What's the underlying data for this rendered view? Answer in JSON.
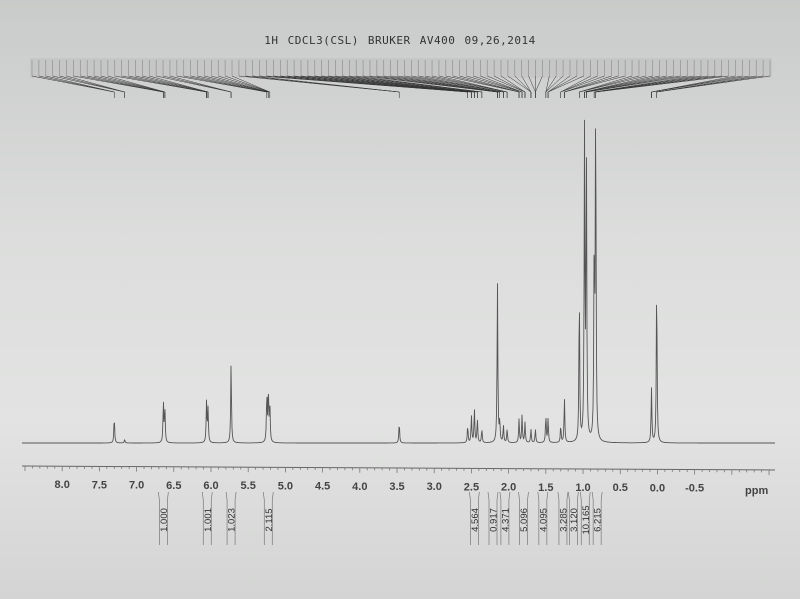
{
  "header": {
    "title": "1H CDCL3(CSL)  BRUKER AV400 09,26,2014"
  },
  "chart_data": {
    "type": "line",
    "title": "1H CDCL3(CSL)  BRUKER AV400 09,26,2014",
    "xlabel": "ppm",
    "ylabel": "",
    "x_reversed": true,
    "xlim": [
      8.54,
      -1.58
    ],
    "ylim": [
      0,
      1.0
    ],
    "grid": false,
    "ticks": [
      "8.0",
      "7.5",
      "7.0",
      "6.5",
      "6.0",
      "5.5",
      "5.0",
      "4.5",
      "4.0",
      "3.5",
      "3.0",
      "2.5",
      "2.0",
      "1.5",
      "1.0",
      "0.5",
      "0.0",
      "-0.5"
    ],
    "tick_values": [
      8.0,
      7.5,
      7.0,
      6.5,
      6.0,
      5.5,
      5.0,
      4.5,
      4.0,
      3.5,
      3.0,
      2.5,
      2.0,
      1.5,
      1.0,
      0.5,
      0.0,
      -0.5
    ],
    "line_color": "#555555",
    "peaks": [
      {
        "ppm": 7.3,
        "intensity": 0.076
      },
      {
        "ppm": 7.16,
        "intensity": 0.01
      },
      {
        "ppm": 6.64,
        "intensity": 0.12
      },
      {
        "ppm": 6.62,
        "intensity": 0.1
      },
      {
        "ppm": 6.06,
        "intensity": 0.12
      },
      {
        "ppm": 6.04,
        "intensity": 0.1
      },
      {
        "ppm": 5.73,
        "intensity": 0.235
      },
      {
        "ppm": 5.25,
        "intensity": 0.14
      },
      {
        "ppm": 5.23,
        "intensity": 0.15
      },
      {
        "ppm": 5.21,
        "intensity": 0.12
      },
      {
        "ppm": 3.47,
        "intensity": 0.06
      },
      {
        "ppm": 2.55,
        "intensity": 0.05
      },
      {
        "ppm": 2.5,
        "intensity": 0.08
      },
      {
        "ppm": 2.46,
        "intensity": 0.1
      },
      {
        "ppm": 2.42,
        "intensity": 0.07
      },
      {
        "ppm": 2.36,
        "intensity": 0.04
      },
      {
        "ppm": 2.15,
        "intensity": 0.47
      },
      {
        "ppm": 2.12,
        "intensity": 0.06
      },
      {
        "ppm": 2.07,
        "intensity": 0.05
      },
      {
        "ppm": 2.02,
        "intensity": 0.04
      },
      {
        "ppm": 1.86,
        "intensity": 0.07
      },
      {
        "ppm": 1.82,
        "intensity": 0.08
      },
      {
        "ppm": 1.78,
        "intensity": 0.06
      },
      {
        "ppm": 1.7,
        "intensity": 0.04
      },
      {
        "ppm": 1.64,
        "intensity": 0.04
      },
      {
        "ppm": 1.5,
        "intensity": 0.08
      },
      {
        "ppm": 1.47,
        "intensity": 0.07
      },
      {
        "ppm": 1.3,
        "intensity": 0.05
      },
      {
        "ppm": 1.25,
        "intensity": 0.13
      },
      {
        "ppm": 1.05,
        "intensity": 0.44
      },
      {
        "ppm": 0.98,
        "intensity": 0.9
      },
      {
        "ppm": 0.955,
        "intensity": 0.85
      },
      {
        "ppm": 0.85,
        "intensity": 0.57
      },
      {
        "ppm": 0.83,
        "intensity": 1.0
      },
      {
        "ppm": 0.08,
        "intensity": 0.16
      },
      {
        "ppm": 0.01,
        "intensity": 0.48
      }
    ],
    "integrals": [
      {
        "ppm": 6.64,
        "value": "1.000"
      },
      {
        "ppm": 6.05,
        "value": "1.001"
      },
      {
        "ppm": 5.73,
        "value": "1.023"
      },
      {
        "ppm": 5.23,
        "value": "2.115"
      },
      {
        "ppm": 2.46,
        "value": "4.564"
      },
      {
        "ppm": 2.21,
        "value": "0.917"
      },
      {
        "ppm": 2.05,
        "value": "4.371"
      },
      {
        "ppm": 1.8,
        "value": "5.096"
      },
      {
        "ppm": 1.54,
        "value": "4.095"
      },
      {
        "ppm": 1.27,
        "value": "3.285"
      },
      {
        "ppm": 1.13,
        "value": "3.120"
      },
      {
        "ppm": 0.97,
        "value": "10.165"
      },
      {
        "ppm": 0.81,
        "value": "6.215"
      }
    ]
  }
}
